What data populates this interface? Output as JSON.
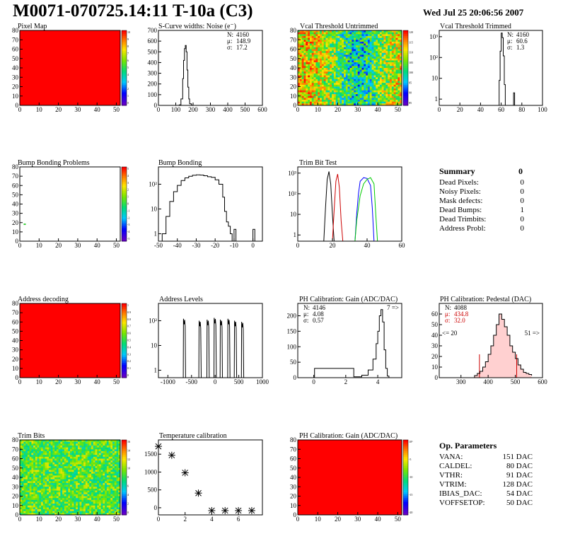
{
  "header": {
    "title": "M0071-070725.14:11 T-10a (C3)",
    "date": "Wed Jul 25 20:06:56 2007"
  },
  "palette": {
    "red": "#ff0000",
    "dark_red": "#cc0000",
    "blue": "#0000ff",
    "green": "#00cc00",
    "black": "#000000"
  },
  "summary": {
    "title": "Summary",
    "total": "0",
    "rows": [
      {
        "label": "Dead Pixels:",
        "value": "0"
      },
      {
        "label": "Noisy Pixels:",
        "value": "0"
      },
      {
        "label": "Mask defects:",
        "value": "0"
      },
      {
        "label": "Dead Bumps:",
        "value": "1"
      },
      {
        "label": "Dead Trimbits:",
        "value": "0"
      },
      {
        "label": "Address Probl:",
        "value": "0"
      }
    ]
  },
  "op_params": {
    "title": "Op. Parameters",
    "rows": [
      {
        "label": "VANA:",
        "value": "151 DAC"
      },
      {
        "label": "CALDEL:",
        "value": "80 DAC"
      },
      {
        "label": "VTHR:",
        "value": "91 DAC"
      },
      {
        "label": "VTRIM:",
        "value": "128 DAC"
      },
      {
        "label": "IBIAS_DAC:",
        "value": "54 DAC"
      },
      {
        "label": "VOFFSETOP:",
        "value": "50 DAC"
      }
    ]
  },
  "chart_data": [
    {
      "id": "pixel_map",
      "type": "heatmap",
      "title": "Pixel Map",
      "xlim": [
        0,
        52
      ],
      "ylim": [
        0,
        80
      ],
      "xticks": [
        0,
        10,
        20,
        30,
        40,
        50
      ],
      "yticks": [
        0,
        10,
        20,
        30,
        40,
        50,
        60,
        70,
        80
      ],
      "fill": "uniform",
      "fill_color": "#ff0000",
      "zticks": [
        "10",
        "9",
        "8",
        "7",
        "6",
        "5",
        "4",
        "3",
        "2",
        "1",
        "0"
      ]
    },
    {
      "id": "scurve_noise",
      "type": "histogram",
      "title": "S-Curve widths: Noise (e⁻)",
      "xlim": [
        0,
        600
      ],
      "ylim": [
        0,
        700
      ],
      "xticks": [
        0,
        100,
        200,
        300,
        400,
        500,
        600
      ],
      "yticks": [
        0,
        100,
        200,
        300,
        400,
        500,
        600,
        700
      ],
      "x": [
        110,
        120,
        130,
        140,
        145,
        150,
        155,
        160,
        165,
        170,
        175,
        180,
        190,
        200
      ],
      "y": [
        0,
        5,
        60,
        250,
        420,
        530,
        560,
        500,
        330,
        170,
        60,
        15,
        2,
        0
      ],
      "stats": [
        {
          "label": "N:",
          "value": "4160"
        },
        {
          "label": "μ:",
          "value": "148.9"
        },
        {
          "label": "σ:",
          "value": "17.2"
        }
      ]
    },
    {
      "id": "vcal_untrimmed",
      "type": "heatmap",
      "title": "Vcal Threshold Untrimmed",
      "xlim": [
        0,
        52
      ],
      "ylim": [
        0,
        80
      ],
      "xticks": [
        0,
        10,
        20,
        30,
        40,
        50
      ],
      "yticks": [
        0,
        10,
        20,
        30,
        40,
        50,
        60,
        70,
        80
      ],
      "fill": "noisy",
      "zticks": [
        "120",
        "115",
        "110",
        "105",
        "100",
        "95",
        "90",
        "85"
      ]
    },
    {
      "id": "vcal_trimmed",
      "type": "histogram",
      "title": "Vcal Threshold Trimmed",
      "log_y": true,
      "xlim": [
        0,
        100
      ],
      "ylim": [
        0.5,
        2000
      ],
      "xticks": [
        0,
        20,
        40,
        60,
        80,
        100
      ],
      "yticks": [
        1,
        10,
        100,
        1000
      ],
      "ytick_labels": [
        "1",
        "10",
        "10²",
        "10³"
      ],
      "x": [
        57,
        58,
        59,
        60,
        61,
        62,
        63,
        64,
        72,
        73
      ],
      "y": [
        0.5,
        8,
        200,
        1500,
        900,
        120,
        5,
        0.5,
        2,
        0.5
      ],
      "stats": [
        {
          "label": "N:",
          "value": "4160"
        },
        {
          "label": "μ:",
          "value": "60.6"
        },
        {
          "label": "σ:",
          "value": "1.3"
        }
      ]
    },
    {
      "id": "bump_problems",
      "type": "heatmap",
      "title": "Bump Bonding Problems",
      "xlim": [
        0,
        52
      ],
      "ylim": [
        0,
        80
      ],
      "xticks": [
        0,
        10,
        20,
        30,
        40,
        50
      ],
      "yticks": [
        0,
        10,
        20,
        30,
        40,
        50,
        60,
        70,
        80
      ],
      "fill": "empty",
      "marks": [
        {
          "x": 2,
          "y": 19
        }
      ],
      "zticks": [
        "5",
        "4",
        "3",
        "2",
        "1",
        "0",
        "-1",
        "-2",
        "-3",
        "-4",
        "-5"
      ]
    },
    {
      "id": "bump_bonding",
      "type": "histogram",
      "title": "Bump Bonding",
      "log_y": true,
      "xlim": [
        -50,
        5
      ],
      "ylim": [
        0.5,
        500
      ],
      "xticks": [
        -50,
        -40,
        -30,
        -20,
        -10,
        0
      ],
      "yticks": [
        1,
        10,
        100
      ],
      "ytick_labels": [
        "1",
        "10",
        "10²"
      ],
      "x": [
        -49,
        -48,
        -46,
        -44,
        -42,
        -40,
        -38,
        -36,
        -34,
        -32,
        -30,
        -28,
        -26,
        -24,
        -22,
        -20,
        -18,
        -16,
        -15,
        -14,
        -13,
        -12,
        -11,
        -10,
        -9,
        -1,
        0,
        1
      ],
      "y": [
        0.5,
        1,
        5,
        20,
        50,
        90,
        140,
        180,
        210,
        230,
        240,
        235,
        220,
        200,
        190,
        150,
        100,
        30,
        8,
        3,
        2,
        1,
        0.5,
        1.5,
        0.5,
        0.5,
        1.5,
        0.5
      ]
    },
    {
      "id": "trim_bit_test",
      "type": "histogram",
      "title": "Trim Bit Test",
      "log_y": true,
      "xlim": [
        0,
        60
      ],
      "ylim": [
        0.5,
        2000
      ],
      "xticks": [
        0,
        20,
        40,
        60
      ],
      "yticks": [
        1,
        10,
        100,
        1000
      ],
      "ytick_labels": [
        "1",
        "10",
        "10²",
        "10³"
      ],
      "series": [
        {
          "color": "#000000",
          "x": [
            15,
            16,
            17,
            18,
            19,
            20,
            21
          ],
          "y": [
            0.5,
            20,
            500,
            1200,
            300,
            10,
            0.5
          ]
        },
        {
          "color": "#cc0000",
          "x": [
            20,
            21,
            22,
            23,
            24,
            25,
            26
          ],
          "y": [
            0.5,
            15,
            400,
            900,
            200,
            5,
            0.5
          ]
        },
        {
          "color": "#0000ff",
          "x": [
            33,
            34,
            35,
            36,
            38,
            40,
            42,
            43,
            44
          ],
          "y": [
            0.5,
            10,
            100,
            400,
            600,
            550,
            250,
            20,
            0.5
          ]
        },
        {
          "color": "#00cc00",
          "x": [
            33,
            34,
            36,
            38,
            40,
            42,
            44,
            45,
            46
          ],
          "y": [
            0.5,
            5,
            80,
            300,
            500,
            600,
            300,
            10,
            0.5
          ]
        }
      ]
    },
    {
      "id": "address_decoding",
      "type": "heatmap",
      "title": "Address decoding",
      "xlim": [
        0,
        52
      ],
      "ylim": [
        0,
        80
      ],
      "xticks": [
        0,
        10,
        20,
        30,
        40,
        50
      ],
      "yticks": [
        0,
        10,
        20,
        30,
        40,
        50,
        60,
        70,
        80
      ],
      "fill": "uniform",
      "fill_color": "#ff0000",
      "zticks": [
        "1",
        "0.9",
        "0.8",
        "0.7",
        "0.6",
        "0.5",
        "0.4",
        "0.3",
        "0.2",
        "0.1",
        "0"
      ]
    },
    {
      "id": "address_levels",
      "type": "histogram",
      "title": "Address Levels",
      "log_y": true,
      "xlim": [
        -1200,
        1000
      ],
      "ylim": [
        0.5,
        500
      ],
      "xticks": [
        -1000,
        -500,
        0,
        500,
        1000
      ],
      "yticks": [
        1,
        10,
        100
      ],
      "ytick_labels": [
        "1",
        "10",
        "10²"
      ],
      "peaks": [
        -650,
        -320,
        -150,
        0,
        130,
        290,
        430,
        580
      ],
      "peak_heights": [
        120,
        100,
        110,
        130,
        110,
        120,
        100,
        90
      ]
    },
    {
      "id": "ph_gain",
      "type": "histogram",
      "title": "PH Calibration: Gain (ADC/DAC)",
      "xlim": [
        -1,
        5.5
      ],
      "ylim": [
        0,
        240
      ],
      "xticks": [
        0,
        2,
        4
      ],
      "yticks": [
        0,
        50,
        100,
        150,
        200
      ],
      "x": [
        0,
        0.05,
        2.5,
        3,
        3.4,
        3.7,
        3.9,
        4.0,
        4.1,
        4.2,
        4.3,
        4.4,
        4.5,
        4.6,
        4.7
      ],
      "y": [
        0,
        30,
        3,
        8,
        25,
        60,
        110,
        150,
        200,
        220,
        180,
        90,
        30,
        5,
        0
      ],
      "stats": [
        {
          "label": "N:",
          "value": "4146"
        },
        {
          "label": "μ:",
          "value": "4.08"
        },
        {
          "label": "σ:",
          "value": "0.57"
        }
      ],
      "overflow": "7 =>"
    },
    {
      "id": "ph_pedestal",
      "type": "histogram",
      "title": "PH Calibration: Pedestal (DAC)",
      "xlim": [
        220,
        600
      ],
      "ylim": [
        0,
        70
      ],
      "xticks": [
        300,
        400,
        500,
        600
      ],
      "yticks": [
        0,
        10,
        20,
        30,
        40,
        50,
        60
      ],
      "x": [
        350,
        360,
        370,
        380,
        390,
        400,
        410,
        420,
        430,
        440,
        450,
        460,
        470,
        480,
        490,
        500,
        510,
        520,
        530,
        540,
        550,
        560
      ],
      "y": [
        2,
        4,
        6,
        10,
        15,
        22,
        30,
        40,
        50,
        60,
        55,
        48,
        40,
        30,
        24,
        18,
        12,
        8,
        5,
        4,
        3,
        2
      ],
      "stats": [
        {
          "label": "N:",
          "value": "4088"
        },
        {
          "label": "μ:",
          "value": "434.8"
        },
        {
          "label": "σ:",
          "value": "32.0"
        }
      ],
      "underflow": "<= 20",
      "overflow": "51 =>",
      "cut_low": 368,
      "cut_high": 505
    },
    {
      "id": "trim_bits",
      "type": "heatmap",
      "title": "Trim Bits",
      "xlim": [
        0,
        52
      ],
      "ylim": [
        0,
        80
      ],
      "xticks": [
        0,
        10,
        20,
        30,
        40,
        50
      ],
      "yticks": [
        0,
        10,
        20,
        30,
        40,
        50,
        60,
        70,
        80
      ],
      "fill": "noisy_green",
      "zticks": [
        "16",
        "14",
        "12",
        "10",
        "8",
        "6",
        "4",
        "2",
        "0"
      ]
    },
    {
      "id": "temperature",
      "type": "scatter",
      "title": "Temperature calibration",
      "xlim": [
        0,
        7.8
      ],
      "ylim": [
        -200,
        1900
      ],
      "xticks": [
        0,
        2,
        4,
        6
      ],
      "yticks": [
        0,
        500,
        1000,
        1500
      ],
      "x": [
        0,
        1,
        2,
        3,
        4,
        5,
        6,
        7
      ],
      "y": [
        1720,
        1470,
        980,
        410,
        -80,
        -80,
        -80,
        -80
      ]
    },
    {
      "id": "ph_gain_map",
      "type": "heatmap",
      "title": "PH Calibration: Gain (ADC/DAC)",
      "xlim": [
        0,
        52
      ],
      "ylim": [
        0,
        80
      ],
      "xticks": [
        0,
        10,
        20,
        30,
        40,
        50
      ],
      "yticks": [
        0,
        10,
        20,
        30,
        40,
        50,
        60,
        70,
        80
      ],
      "fill": "uniform",
      "fill_color": "#ff0000",
      "zticks": [
        "10⁶",
        "-5",
        "-10",
        "-15",
        "-20"
      ]
    }
  ]
}
